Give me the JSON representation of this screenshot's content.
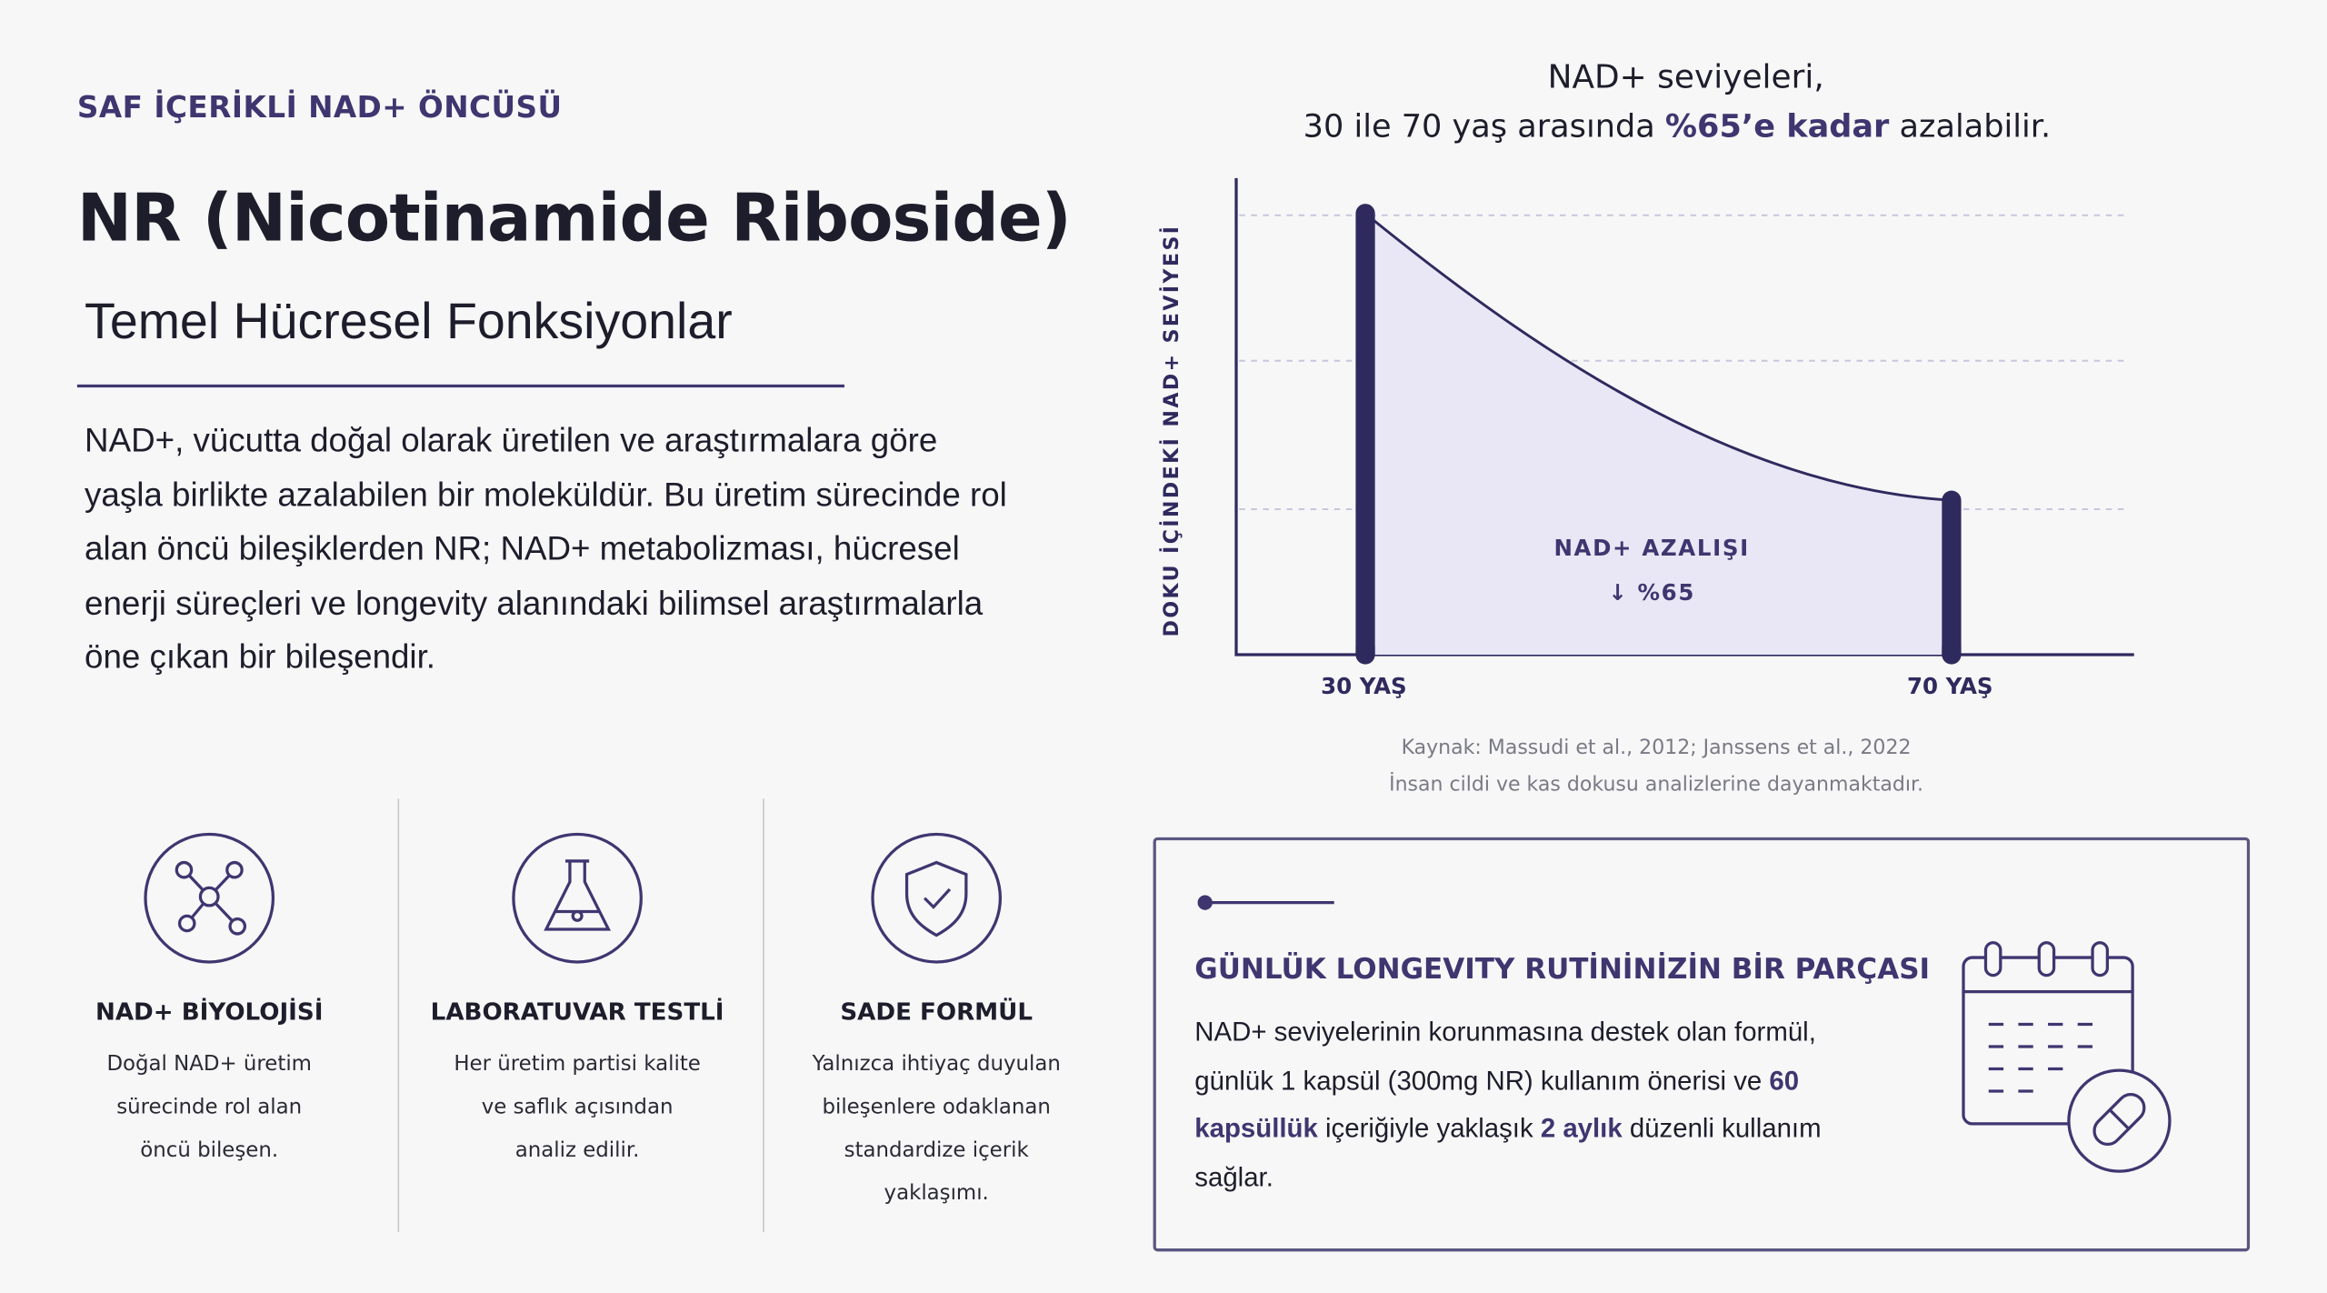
{
  "header": {
    "eyebrow": "SAF İÇERİKLİ NAD+ ÖNCÜSÜ",
    "title": "NR (Nicotinamide Riboside)",
    "subtitle": "Temel Hücresel Fonksiyonlar"
  },
  "intro": "NAD+, vücutta doğal olarak üretilen ve araştırmalara göre yaşla birlikte azalabilen bir moleküldür. Bu üretim sürecinde rol alan öncü bileşiklerden NR; NAD+ metabolizması, hücresel enerji süreçleri ve longevity alanındaki bilimsel araştırmalarla öne çıkan bir bileşendir.",
  "features": [
    {
      "title": "NAD+ BİYOLOJİSİ",
      "lines": [
        "Doğal NAD+ üretim",
        "sürecinde rol alan",
        "öncü bileşen."
      ]
    },
    {
      "title": "LABORATUVAR TESTLİ",
      "lines": [
        "Her üretim partisi kalite",
        "ve saflık açısından",
        "analiz edilir."
      ]
    },
    {
      "title": "SADE FORMÜL",
      "lines": [
        "Yalnızca ihtiyaç duyulan",
        "bileşenlere odaklanan",
        "standardize içerik",
        "yaklaşımı."
      ]
    }
  ],
  "chart_data": {
    "type": "area",
    "title": "NAD+ seviyeleri,",
    "subtitle": [
      "30 ile 70 yaş arasında ",
      "%65’e kadar",
      " azalabilir."
    ],
    "y_label": "DOKU İÇİNDEKİ NAD+ SEVİYESİ",
    "categories": [
      "30 YAŞ",
      "70 YAŞ"
    ],
    "values": [
      100,
      35
    ],
    "ylim": [
      0,
      108
    ],
    "color": "#2f2a5e",
    "fill": "#e9e7f5",
    "annotation": [
      "NAD+ AZALIŞI",
      "↓ %65"
    ]
  },
  "source": [
    "Kaynak: Massudi et al., 2012; Janssens et al., 2022",
    "İnsan cildi ve kas dokusu analizlerine dayanmaktadır."
  ],
  "routine": {
    "title": "GÜNLÜK LONGEVITY RUTİNİNİZİN BİR PARÇASI",
    "text": [
      "NAD+ seviyelerinin korunmasına destek olan formül, günlük 1 kapsül (300mg NR) kullanım önerisi ve ",
      "60 kapsüllük",
      " içeriğiyle yaklaşık ",
      "2 aylık",
      " düzenli kullanım sağlar."
    ]
  }
}
